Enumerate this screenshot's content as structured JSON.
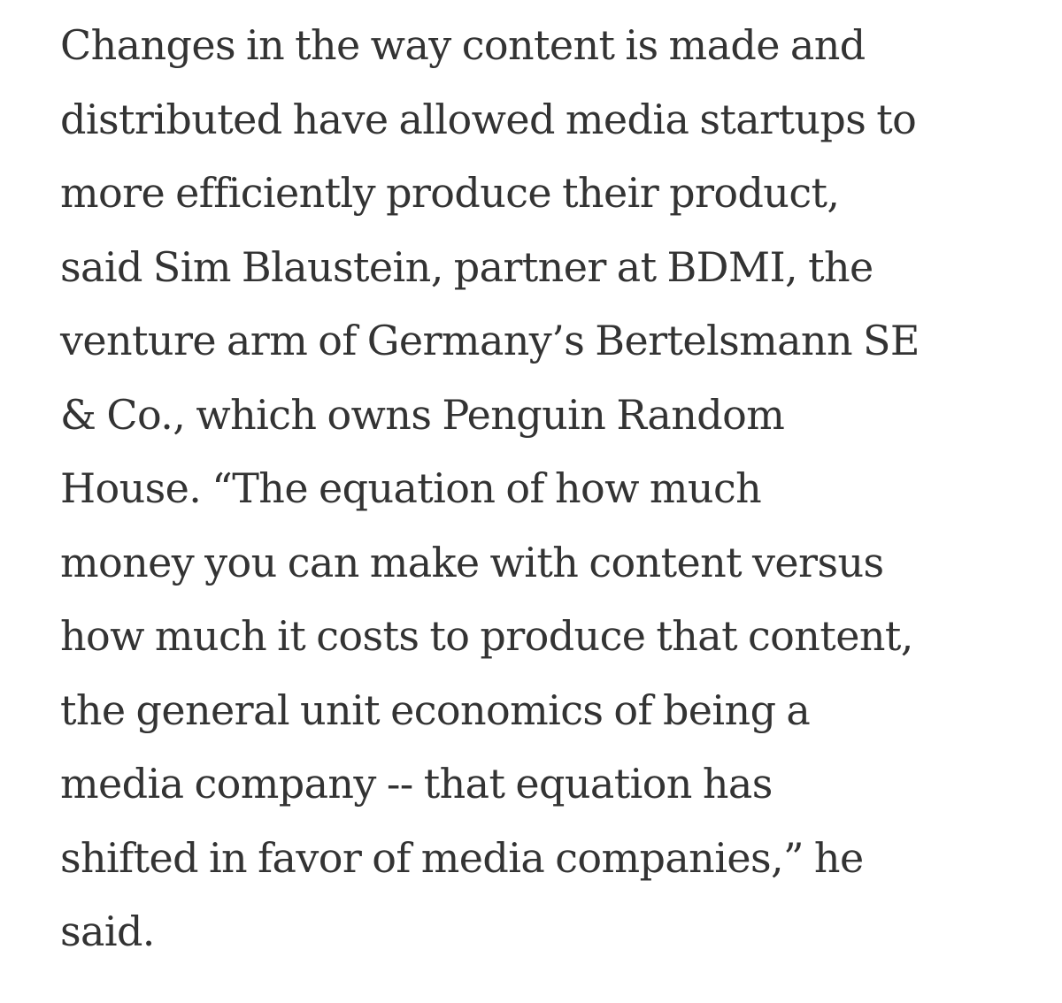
{
  "article": {
    "paragraph_lines": [
      "Changes in the way content is made and",
      "distributed have allowed media startups to",
      "more efficiently produce their product,",
      "said Sim Blaustein, partner at BDMI, the",
      "venture arm of Germany’s Bertelsmann SE",
      "& Co., which owns Penguin Random",
      "House. “The equation of how much",
      "money you can make with content versus",
      "how much it costs to produce that content,",
      "the general unit economics of being a",
      "media company -- that equation has",
      "shifted in favor of media companies,” he",
      "said."
    ]
  }
}
